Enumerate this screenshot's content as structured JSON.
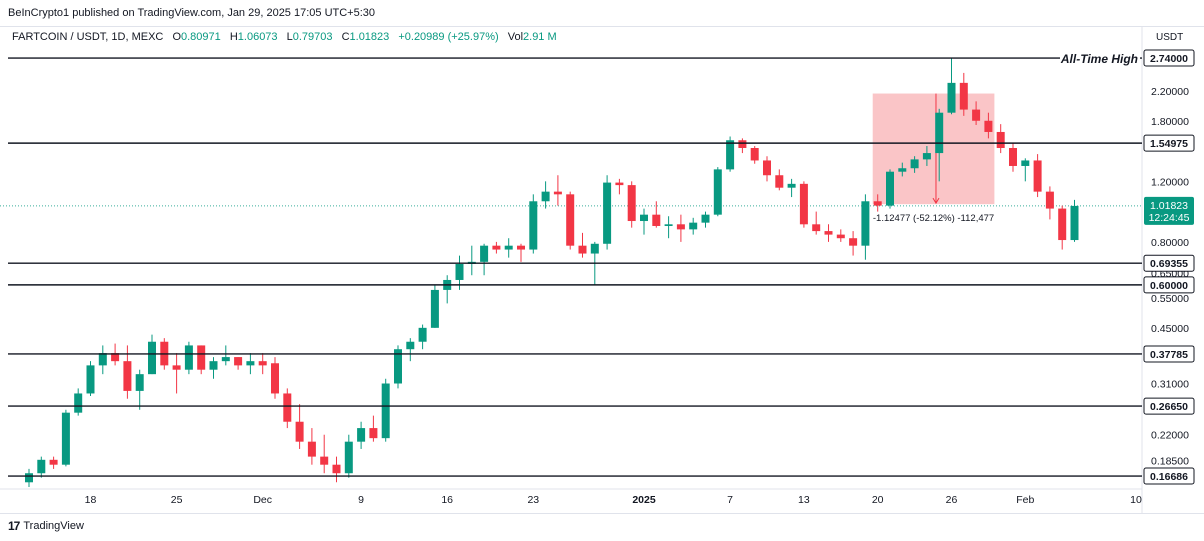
{
  "header": {
    "published": "BeInCrypto1 published on TradingView.com, Jan 29, 2025 17:05 UTC+5:30"
  },
  "legend": {
    "symbol": "FARTCOIN / USDT, 1D, MEXC",
    "o_label": "O",
    "o_val": "0.80971",
    "h_label": "H",
    "h_val": "1.06073",
    "l_label": "L",
    "l_val": "0.79703",
    "c_label": "C",
    "c_val": "1.01823",
    "change": "+0.20989 (+25.97%)",
    "vol_label": "Vol",
    "vol_val": "2.91 M"
  },
  "currency": "USDT",
  "footer": {
    "brand": "TradingView",
    "logo": "17"
  },
  "colors": {
    "up": "#089981",
    "down": "#f23645",
    "line": "#131722",
    "measure": "#f7a6a9"
  },
  "chart_data": {
    "type": "candlestick",
    "yscale": "log",
    "ylim": [
      0.154,
      2.93
    ],
    "y_ticks": [
      "2.20000",
      "1.80000",
      "1.20000",
      "0.80000",
      "0.65000",
      "0.55000",
      "0.45000",
      "0.31000",
      "0.22000",
      "0.18500"
    ],
    "x_ticks": [
      "18",
      "25",
      "Dec",
      "9",
      "16",
      "23",
      "2025",
      "7",
      "13",
      "20",
      "26",
      "Feb",
      "10"
    ],
    "horizontal_levels": [
      {
        "value": 2.74,
        "label": "2.74000",
        "note": "All-Time High"
      },
      {
        "value": 1.54975,
        "label": "1.54975"
      },
      {
        "value": 0.69355,
        "label": "0.69355"
      },
      {
        "value": 0.6,
        "label": "0.60000"
      },
      {
        "value": 0.37785,
        "label": "0.37785"
      },
      {
        "value": 0.2665,
        "label": "0.26650"
      },
      {
        "value": 0.16686,
        "label": "0.16686"
      }
    ],
    "current_price": {
      "value": 1.01823,
      "label": "1.01823",
      "countdown": "12:24:45"
    },
    "measure_box": {
      "text": "-1.12477 (-52.12%) -112,477",
      "from": 2.16,
      "to": 1.03
    },
    "candles": [
      {
        "o": 0.16,
        "h": 0.175,
        "l": 0.155,
        "c": 0.17
      },
      {
        "o": 0.17,
        "h": 0.19,
        "l": 0.165,
        "c": 0.186
      },
      {
        "o": 0.186,
        "h": 0.19,
        "l": 0.175,
        "c": 0.18
      },
      {
        "o": 0.18,
        "h": 0.26,
        "l": 0.178,
        "c": 0.255
      },
      {
        "o": 0.255,
        "h": 0.3,
        "l": 0.25,
        "c": 0.29
      },
      {
        "o": 0.29,
        "h": 0.36,
        "l": 0.285,
        "c": 0.35
      },
      {
        "o": 0.35,
        "h": 0.4,
        "l": 0.33,
        "c": 0.38
      },
      {
        "o": 0.38,
        "h": 0.405,
        "l": 0.35,
        "c": 0.36
      },
      {
        "o": 0.36,
        "h": 0.4,
        "l": 0.28,
        "c": 0.295
      },
      {
        "o": 0.295,
        "h": 0.34,
        "l": 0.26,
        "c": 0.33
      },
      {
        "o": 0.33,
        "h": 0.43,
        "l": 0.33,
        "c": 0.41
      },
      {
        "o": 0.41,
        "h": 0.42,
        "l": 0.34,
        "c": 0.35
      },
      {
        "o": 0.35,
        "h": 0.38,
        "l": 0.29,
        "c": 0.34
      },
      {
        "o": 0.34,
        "h": 0.41,
        "l": 0.33,
        "c": 0.4
      },
      {
        "o": 0.4,
        "h": 0.4,
        "l": 0.33,
        "c": 0.34
      },
      {
        "o": 0.34,
        "h": 0.37,
        "l": 0.32,
        "c": 0.36
      },
      {
        "o": 0.36,
        "h": 0.4,
        "l": 0.35,
        "c": 0.37
      },
      {
        "o": 0.37,
        "h": 0.37,
        "l": 0.34,
        "c": 0.35
      },
      {
        "o": 0.35,
        "h": 0.38,
        "l": 0.33,
        "c": 0.36
      },
      {
        "o": 0.36,
        "h": 0.38,
        "l": 0.33,
        "c": 0.35
      },
      {
        "o": 0.355,
        "h": 0.37,
        "l": 0.28,
        "c": 0.29
      },
      {
        "o": 0.29,
        "h": 0.3,
        "l": 0.23,
        "c": 0.24
      },
      {
        "o": 0.24,
        "h": 0.27,
        "l": 0.2,
        "c": 0.21
      },
      {
        "o": 0.21,
        "h": 0.23,
        "l": 0.18,
        "c": 0.19
      },
      {
        "o": 0.19,
        "h": 0.22,
        "l": 0.17,
        "c": 0.18
      },
      {
        "o": 0.18,
        "h": 0.19,
        "l": 0.16,
        "c": 0.17
      },
      {
        "o": 0.17,
        "h": 0.22,
        "l": 0.165,
        "c": 0.21
      },
      {
        "o": 0.21,
        "h": 0.24,
        "l": 0.2,
        "c": 0.23
      },
      {
        "o": 0.23,
        "h": 0.25,
        "l": 0.21,
        "c": 0.215
      },
      {
        "o": 0.215,
        "h": 0.32,
        "l": 0.21,
        "c": 0.31
      },
      {
        "o": 0.31,
        "h": 0.4,
        "l": 0.3,
        "c": 0.39
      },
      {
        "o": 0.39,
        "h": 0.42,
        "l": 0.36,
        "c": 0.41
      },
      {
        "o": 0.41,
        "h": 0.46,
        "l": 0.39,
        "c": 0.45
      },
      {
        "o": 0.45,
        "h": 0.6,
        "l": 0.45,
        "c": 0.58
      },
      {
        "o": 0.58,
        "h": 0.64,
        "l": 0.53,
        "c": 0.62
      },
      {
        "o": 0.62,
        "h": 0.73,
        "l": 0.58,
        "c": 0.69
      },
      {
        "o": 0.69,
        "h": 0.78,
        "l": 0.64,
        "c": 0.7
      },
      {
        "o": 0.7,
        "h": 0.79,
        "l": 0.64,
        "c": 0.78
      },
      {
        "o": 0.78,
        "h": 0.8,
        "l": 0.74,
        "c": 0.76
      },
      {
        "o": 0.76,
        "h": 0.82,
        "l": 0.72,
        "c": 0.78
      },
      {
        "o": 0.78,
        "h": 0.79,
        "l": 0.7,
        "c": 0.76
      },
      {
        "o": 0.76,
        "h": 1.1,
        "l": 0.74,
        "c": 1.05
      },
      {
        "o": 1.05,
        "h": 1.2,
        "l": 1.0,
        "c": 1.12
      },
      {
        "o": 1.12,
        "h": 1.25,
        "l": 1.02,
        "c": 1.1
      },
      {
        "o": 1.1,
        "h": 1.12,
        "l": 0.76,
        "c": 0.78
      },
      {
        "o": 0.78,
        "h": 0.85,
        "l": 0.72,
        "c": 0.74
      },
      {
        "o": 0.74,
        "h": 0.8,
        "l": 0.6,
        "c": 0.79
      },
      {
        "o": 0.79,
        "h": 1.25,
        "l": 0.76,
        "c": 1.19
      },
      {
        "o": 1.19,
        "h": 1.22,
        "l": 1.1,
        "c": 1.17
      },
      {
        "o": 1.17,
        "h": 1.2,
        "l": 0.88,
        "c": 0.92
      },
      {
        "o": 0.92,
        "h": 1.0,
        "l": 0.84,
        "c": 0.96
      },
      {
        "o": 0.96,
        "h": 1.05,
        "l": 0.88,
        "c": 0.89
      },
      {
        "o": 0.89,
        "h": 0.95,
        "l": 0.82,
        "c": 0.9
      },
      {
        "o": 0.9,
        "h": 0.96,
        "l": 0.8,
        "c": 0.87
      },
      {
        "o": 0.87,
        "h": 0.94,
        "l": 0.84,
        "c": 0.91
      },
      {
        "o": 0.91,
        "h": 0.98,
        "l": 0.88,
        "c": 0.96
      },
      {
        "o": 0.96,
        "h": 1.32,
        "l": 0.95,
        "c": 1.3
      },
      {
        "o": 1.3,
        "h": 1.62,
        "l": 1.28,
        "c": 1.58
      },
      {
        "o": 1.58,
        "h": 1.6,
        "l": 1.45,
        "c": 1.5
      },
      {
        "o": 1.5,
        "h": 1.52,
        "l": 1.35,
        "c": 1.38
      },
      {
        "o": 1.38,
        "h": 1.42,
        "l": 1.2,
        "c": 1.25
      },
      {
        "o": 1.25,
        "h": 1.3,
        "l": 1.13,
        "c": 1.15
      },
      {
        "o": 1.15,
        "h": 1.22,
        "l": 1.08,
        "c": 1.18
      },
      {
        "o": 1.18,
        "h": 1.2,
        "l": 0.88,
        "c": 0.9
      },
      {
        "o": 0.9,
        "h": 0.98,
        "l": 0.84,
        "c": 0.86
      },
      {
        "o": 0.86,
        "h": 0.9,
        "l": 0.8,
        "c": 0.84
      },
      {
        "o": 0.84,
        "h": 0.87,
        "l": 0.8,
        "c": 0.82
      },
      {
        "o": 0.82,
        "h": 0.86,
        "l": 0.73,
        "c": 0.78
      },
      {
        "o": 0.78,
        "h": 1.1,
        "l": 0.71,
        "c": 1.05
      },
      {
        "o": 1.05,
        "h": 1.1,
        "l": 0.98,
        "c": 1.02
      },
      {
        "o": 1.02,
        "h": 1.3,
        "l": 1.0,
        "c": 1.28
      },
      {
        "o": 1.28,
        "h": 1.36,
        "l": 1.24,
        "c": 1.31
      },
      {
        "o": 1.31,
        "h": 1.42,
        "l": 1.27,
        "c": 1.39
      },
      {
        "o": 1.39,
        "h": 1.52,
        "l": 1.33,
        "c": 1.45
      },
      {
        "o": 1.45,
        "h": 1.95,
        "l": 1.2,
        "c": 1.9
      },
      {
        "o": 1.9,
        "h": 2.74,
        "l": 1.88,
        "c": 2.32
      },
      {
        "o": 2.32,
        "h": 2.48,
        "l": 1.86,
        "c": 1.94
      },
      {
        "o": 1.94,
        "h": 2.05,
        "l": 1.75,
        "c": 1.8
      },
      {
        "o": 1.8,
        "h": 1.9,
        "l": 1.6,
        "c": 1.67
      },
      {
        "o": 1.67,
        "h": 1.76,
        "l": 1.45,
        "c": 1.5
      },
      {
        "o": 1.5,
        "h": 1.55,
        "l": 1.28,
        "c": 1.33
      },
      {
        "o": 1.33,
        "h": 1.4,
        "l": 1.2,
        "c": 1.38
      },
      {
        "o": 1.38,
        "h": 1.44,
        "l": 1.08,
        "c": 1.12
      },
      {
        "o": 1.12,
        "h": 1.16,
        "l": 0.93,
        "c": 1.0
      },
      {
        "o": 1.0,
        "h": 1.02,
        "l": 0.76,
        "c": 0.81
      },
      {
        "o": 0.81,
        "h": 1.06,
        "l": 0.8,
        "c": 1.018
      }
    ]
  }
}
